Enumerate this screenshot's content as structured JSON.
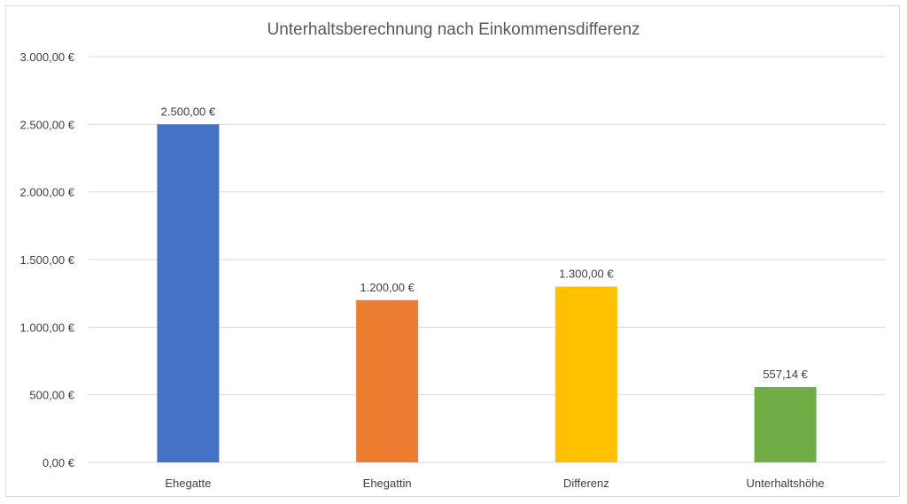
{
  "chart_data": {
    "type": "bar",
    "title": "Unterhaltsberechnung nach Einkommensdifferenz",
    "categories": [
      "Ehegatte",
      "Ehegattin",
      "Differenz",
      "Unterhaltshöhe"
    ],
    "values": [
      2500,
      1200,
      1300,
      557.14
    ],
    "data_labels": [
      "2.500,00 €",
      "1.200,00 €",
      "1.300,00 €",
      "557,14 €"
    ],
    "colors": [
      "#4472c4",
      "#ed7d31",
      "#ffc000",
      "#70ad47"
    ],
    "ylim": [
      0,
      3000
    ],
    "yticks": [
      0,
      500,
      1000,
      1500,
      2000,
      2500,
      3000
    ],
    "ytick_labels": [
      "0,00 €",
      "500,00 €",
      "1.000,00 €",
      "1.500,00 €",
      "2.000,00 €",
      "2.500,00 €",
      "3.000,00 €"
    ],
    "xlabel": "",
    "ylabel": "",
    "grid": true,
    "legend": "none"
  }
}
